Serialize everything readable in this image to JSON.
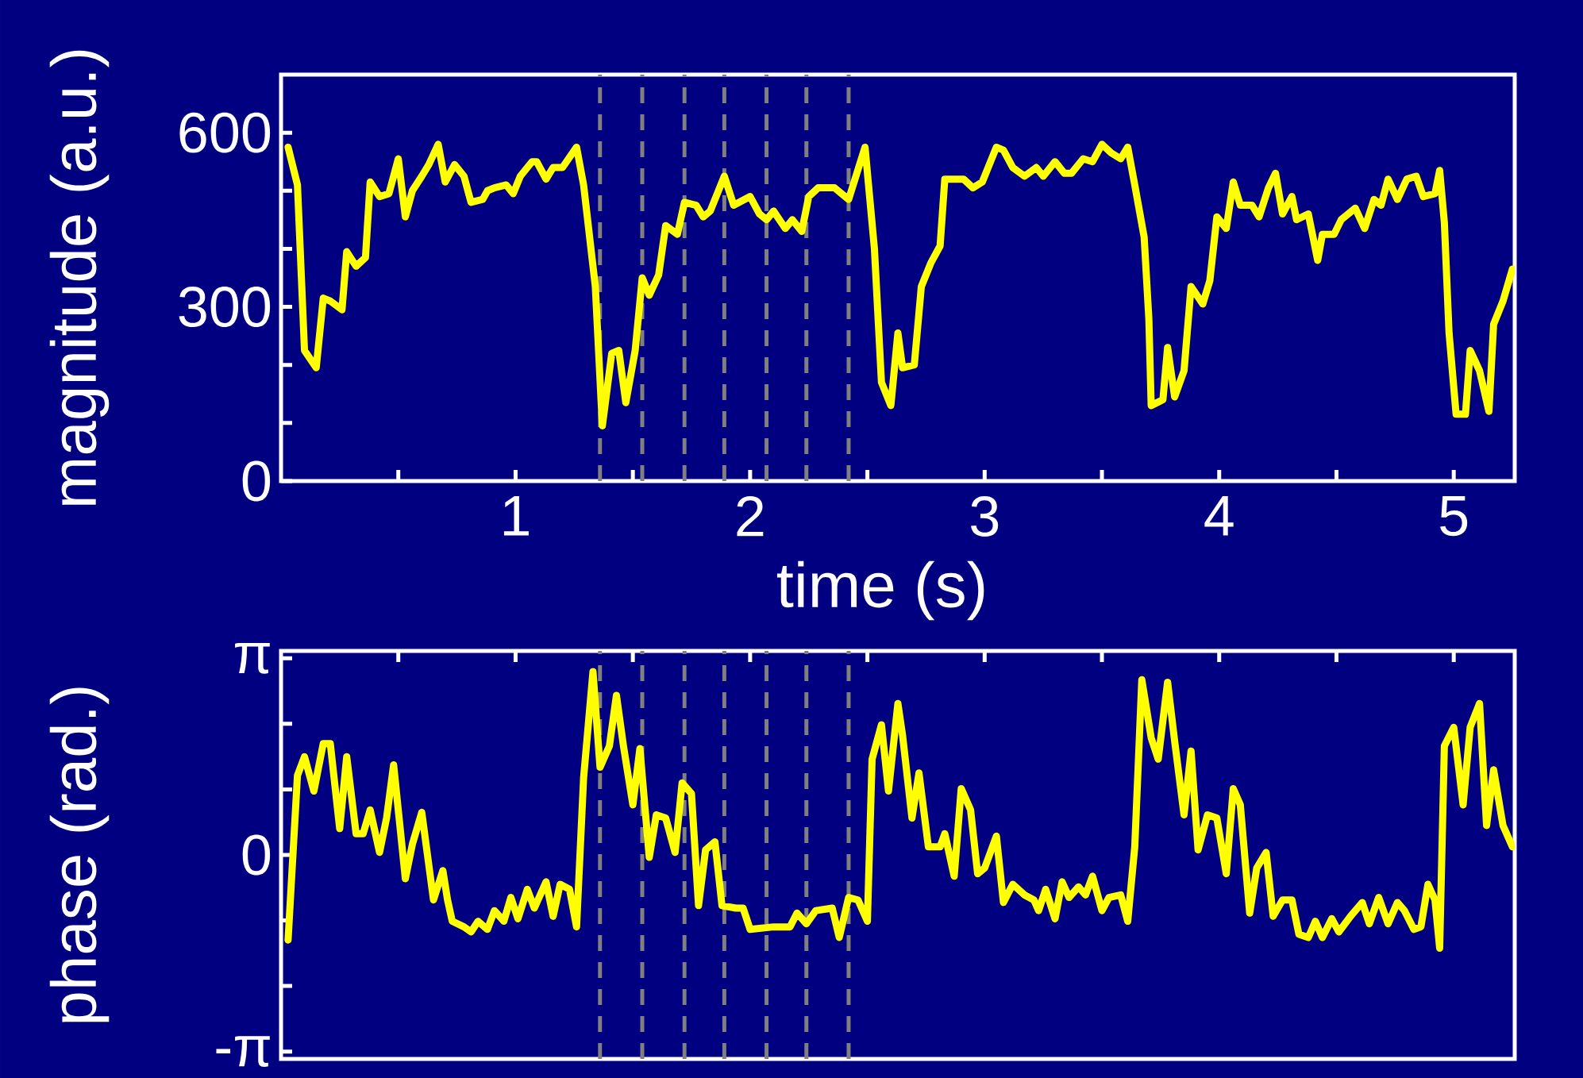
{
  "chart_data": [
    {
      "type": "line",
      "ylabel": "magnitude (a.u.)",
      "xlabel": "time (s)",
      "xlim": [
        0,
        5.26
      ],
      "ylim": [
        0,
        700
      ],
      "xticks": [
        {
          "value": 0.5,
          "label": null
        },
        1,
        {
          "value": 1.5,
          "label": null
        },
        2,
        {
          "value": 2.5,
          "label": null
        },
        3,
        {
          "value": 3.5,
          "label": null
        },
        4,
        {
          "value": 4.5,
          "label": null
        },
        5
      ],
      "yticks": [
        0,
        {
          "value": 100,
          "label": null
        },
        {
          "value": 200,
          "label": null
        },
        300,
        {
          "value": 400,
          "label": null
        },
        {
          "value": 500,
          "label": null
        },
        600
      ],
      "x": [
        0.03,
        0.07,
        0.1,
        0.15,
        0.18,
        0.21,
        0.26,
        0.28,
        0.32,
        0.36,
        0.38,
        0.42,
        0.46,
        0.5,
        0.53,
        0.56,
        0.6,
        0.63,
        0.67,
        0.7,
        0.74,
        0.78,
        0.81,
        0.86,
        0.88,
        0.91,
        0.96,
        0.99,
        1.02,
        1.07,
        1.09,
        1.13,
        1.16,
        1.2,
        1.26,
        1.29,
        1.34,
        1.37,
        1.41,
        1.44,
        1.47,
        1.51,
        1.54,
        1.57,
        1.61,
        1.64,
        1.69,
        1.72,
        1.77,
        1.8,
        1.83,
        1.89,
        1.93,
        2.0,
        2.04,
        2.07,
        2.1,
        2.15,
        2.18,
        2.22,
        2.25,
        2.29,
        2.36,
        2.42,
        2.49,
        2.53,
        2.56,
        2.6,
        2.63,
        2.65,
        2.7,
        2.73,
        2.77,
        2.81,
        2.83,
        2.91,
        2.95,
        2.99,
        3.05,
        3.08,
        3.12,
        3.17,
        3.22,
        3.25,
        3.3,
        3.34,
        3.37,
        3.42,
        3.46,
        3.5,
        3.54,
        3.58,
        3.61,
        3.64,
        3.68,
        3.7,
        3.71,
        3.76,
        3.78,
        3.81,
        3.85,
        3.88,
        3.93,
        3.96,
        3.99,
        4.03,
        4.06,
        4.09,
        4.14,
        4.17,
        4.21,
        4.24,
        4.27,
        4.31,
        4.33,
        4.38,
        4.42,
        4.44,
        4.49,
        4.52,
        4.58,
        4.62,
        4.66,
        4.69,
        4.72,
        4.76,
        4.8,
        4.84,
        4.87,
        4.92,
        4.94,
        4.96,
        4.98,
        5.01,
        5.05,
        5.07,
        5.11,
        5.15,
        5.17,
        5.21,
        5.25
      ],
      "series": [
        {
          "color": "#ffff00",
          "values": [
            575,
            510,
            225,
            195,
            315,
            310,
            295,
            395,
            370,
            385,
            515,
            490,
            495,
            555,
            455,
            500,
            525,
            545,
            580,
            515,
            545,
            525,
            480,
            485,
            500,
            505,
            510,
            495,
            525,
            550,
            550,
            520,
            540,
            540,
            575,
            510,
            335,
            95,
            220,
            225,
            135,
            225,
            350,
            320,
            355,
            440,
            425,
            480,
            475,
            455,
            465,
            525,
            475,
            490,
            460,
            450,
            465,
            435,
            450,
            430,
            490,
            505,
            505,
            485,
            575,
            400,
            170,
            130,
            255,
            195,
            200,
            335,
            375,
            405,
            520,
            520,
            505,
            515,
            575,
            570,
            540,
            525,
            540,
            525,
            550,
            530,
            530,
            555,
            550,
            580,
            565,
            555,
            575,
            510,
            420,
            280,
            130,
            140,
            230,
            145,
            190,
            335,
            305,
            345,
            455,
            435,
            515,
            475,
            475,
            455,
            505,
            530,
            460,
            490,
            450,
            460,
            380,
            425,
            425,
            450,
            470,
            435,
            485,
            475,
            520,
            485,
            520,
            525,
            490,
            495,
            535,
            445,
            255,
            115,
            115,
            225,
            190,
            120,
            270,
            310,
            365
          ]
        }
      ],
      "ref_lines": [
        {
          "axis": "x",
          "value": 1.36,
          "color": "#808080",
          "line_style": "dashed"
        },
        {
          "axis": "x",
          "value": 1.54,
          "color": "#808080",
          "line_style": "dashed"
        },
        {
          "axis": "x",
          "value": 1.72,
          "color": "#808080",
          "line_style": "dashed"
        },
        {
          "axis": "x",
          "value": 1.89,
          "color": "#808080",
          "line_style": "dashed"
        },
        {
          "axis": "x",
          "value": 2.07,
          "color": "#808080",
          "line_style": "dashed"
        },
        {
          "axis": "x",
          "value": 2.24,
          "color": "#808080",
          "line_style": "dashed"
        },
        {
          "axis": "x",
          "value": 2.42,
          "color": "#808080",
          "line_style": "dashed"
        }
      ]
    },
    {
      "type": "line",
      "ylabel": "phase (rad.)",
      "xlim": [
        0,
        5.26
      ],
      "ylim": [
        -3.26,
        3.26
      ],
      "tick_labels": "y",
      "xticks": [
        {
          "value": 0.5,
          "label": null
        },
        {
          "value": 1,
          "label": null
        },
        {
          "value": 1.5,
          "label": null
        },
        {
          "value": 2,
          "label": null
        },
        {
          "value": 2.5,
          "label": null
        },
        {
          "value": 3,
          "label": null
        },
        {
          "value": 3.5,
          "label": null
        },
        {
          "value": 4,
          "label": null
        },
        {
          "value": 4.5,
          "label": null
        },
        {
          "value": 5,
          "label": null
        }
      ],
      "yticks": [
        {
          "value": -3.1416,
          "label": "-π"
        },
        {
          "value": -2.0944,
          "label": null
        },
        {
          "value": -1.0472,
          "label": null
        },
        0,
        {
          "value": 1.0472,
          "label": null
        },
        {
          "value": 2.0944,
          "label": null
        },
        {
          "value": 3.1416,
          "label": "π"
        }
      ],
      "x": [
        0.03,
        0.07,
        0.1,
        0.14,
        0.18,
        0.21,
        0.25,
        0.28,
        0.32,
        0.35,
        0.38,
        0.42,
        0.45,
        0.48,
        0.53,
        0.56,
        0.6,
        0.65,
        0.69,
        0.71,
        0.73,
        0.78,
        0.81,
        0.84,
        0.88,
        0.91,
        0.95,
        0.98,
        1.01,
        1.05,
        1.08,
        1.13,
        1.16,
        1.19,
        1.23,
        1.26,
        1.29,
        1.33,
        1.36,
        1.4,
        1.43,
        1.46,
        1.5,
        1.53,
        1.57,
        1.6,
        1.64,
        1.68,
        1.71,
        1.75,
        1.78,
        1.81,
        1.85,
        1.88,
        1.94,
        1.97,
        2.0,
        2.1,
        2.17,
        2.2,
        2.24,
        2.28,
        2.35,
        2.38,
        2.42,
        2.46,
        2.5,
        2.52,
        2.56,
        2.59,
        2.63,
        2.65,
        2.69,
        2.72,
        2.76,
        2.81,
        2.83,
        2.87,
        2.9,
        2.94,
        2.97,
        3.0,
        3.05,
        3.08,
        3.12,
        3.17,
        3.21,
        3.23,
        3.26,
        3.3,
        3.33,
        3.36,
        3.4,
        3.43,
        3.46,
        3.5,
        3.53,
        3.58,
        3.61,
        3.64,
        3.67,
        3.71,
        3.74,
        3.78,
        3.81,
        3.85,
        3.88,
        3.91,
        3.95,
        3.99,
        4.03,
        4.06,
        4.09,
        4.13,
        4.16,
        4.2,
        4.23,
        4.27,
        4.31,
        4.34,
        4.38,
        4.41,
        4.44,
        4.48,
        4.51,
        4.56,
        4.61,
        4.64,
        4.68,
        4.72,
        4.76,
        4.79,
        4.83,
        4.86,
        4.89,
        4.92,
        4.94,
        4.96,
        5.0,
        5.04,
        5.07,
        5.11,
        5.14,
        5.17,
        5.21,
        5.25
      ],
      "series": [
        {
          "color": "#ffff00",
          "values": [
            -1.36,
            1.27,
            1.57,
            1.02,
            1.78,
            1.78,
            0.42,
            1.57,
            0.34,
            0.34,
            0.72,
            0.04,
            0.59,
            1.44,
            -0.38,
            0.17,
            0.68,
            -0.72,
            -0.25,
            -0.72,
            -1.06,
            -1.15,
            -1.23,
            -1.06,
            -1.19,
            -0.89,
            -1.06,
            -0.68,
            -1.02,
            -0.55,
            -0.85,
            -0.43,
            -0.98,
            -0.47,
            -0.55,
            -1.15,
            1.23,
            2.93,
            1.4,
            1.74,
            2.55,
            1.74,
            0.8,
            1.7,
            -0.04,
            0.64,
            0.59,
            0.04,
            1.15,
            0.98,
            -0.81,
            0.08,
            0.21,
            -0.81,
            -0.85,
            -0.85,
            -1.19,
            -1.15,
            -1.15,
            -0.93,
            -1.1,
            -0.89,
            -0.85,
            -1.32,
            -0.68,
            -0.72,
            -1.06,
            1.53,
            2.08,
            1.02,
            2.42,
            1.91,
            0.59,
            1.31,
            0.13,
            0.13,
            0.34,
            -0.34,
            1.06,
            0.72,
            -0.3,
            -0.21,
            0.3,
            -0.76,
            -0.47,
            -0.64,
            -0.72,
            -0.89,
            -0.55,
            -1.02,
            -0.43,
            -0.68,
            -0.51,
            -0.64,
            -0.34,
            -0.89,
            -0.68,
            -0.64,
            -1.06,
            0.13,
            2.8,
            1.87,
            1.53,
            2.76,
            1.82,
            0.64,
            1.66,
            0.08,
            0.64,
            0.59,
            -0.3,
            1.06,
            0.8,
            -0.93,
            -0.21,
            0.04,
            -0.98,
            -0.72,
            -0.72,
            -1.27,
            -1.32,
            -1.06,
            -1.32,
            -1.02,
            -1.23,
            -0.98,
            -0.76,
            -1.1,
            -0.68,
            -1.1,
            -0.76,
            -0.89,
            -1.19,
            -1.15,
            -0.47,
            -0.72,
            -1.49,
            1.74,
            2.04,
            0.8,
            2.04,
            2.42,
            0.47,
            1.36,
            0.47,
            0.13
          ]
        }
      ],
      "ref_lines": [
        {
          "axis": "x",
          "value": 1.36,
          "color": "#808080",
          "line_style": "dashed"
        },
        {
          "axis": "x",
          "value": 1.54,
          "color": "#808080",
          "line_style": "dashed"
        },
        {
          "axis": "x",
          "value": 1.72,
          "color": "#808080",
          "line_style": "dashed"
        },
        {
          "axis": "x",
          "value": 1.89,
          "color": "#808080",
          "line_style": "dashed"
        },
        {
          "axis": "x",
          "value": 2.07,
          "color": "#808080",
          "line_style": "dashed"
        },
        {
          "axis": "x",
          "value": 2.24,
          "color": "#808080",
          "line_style": "dashed"
        },
        {
          "axis": "x",
          "value": 2.42,
          "color": "#808080",
          "line_style": "dashed"
        }
      ]
    }
  ]
}
